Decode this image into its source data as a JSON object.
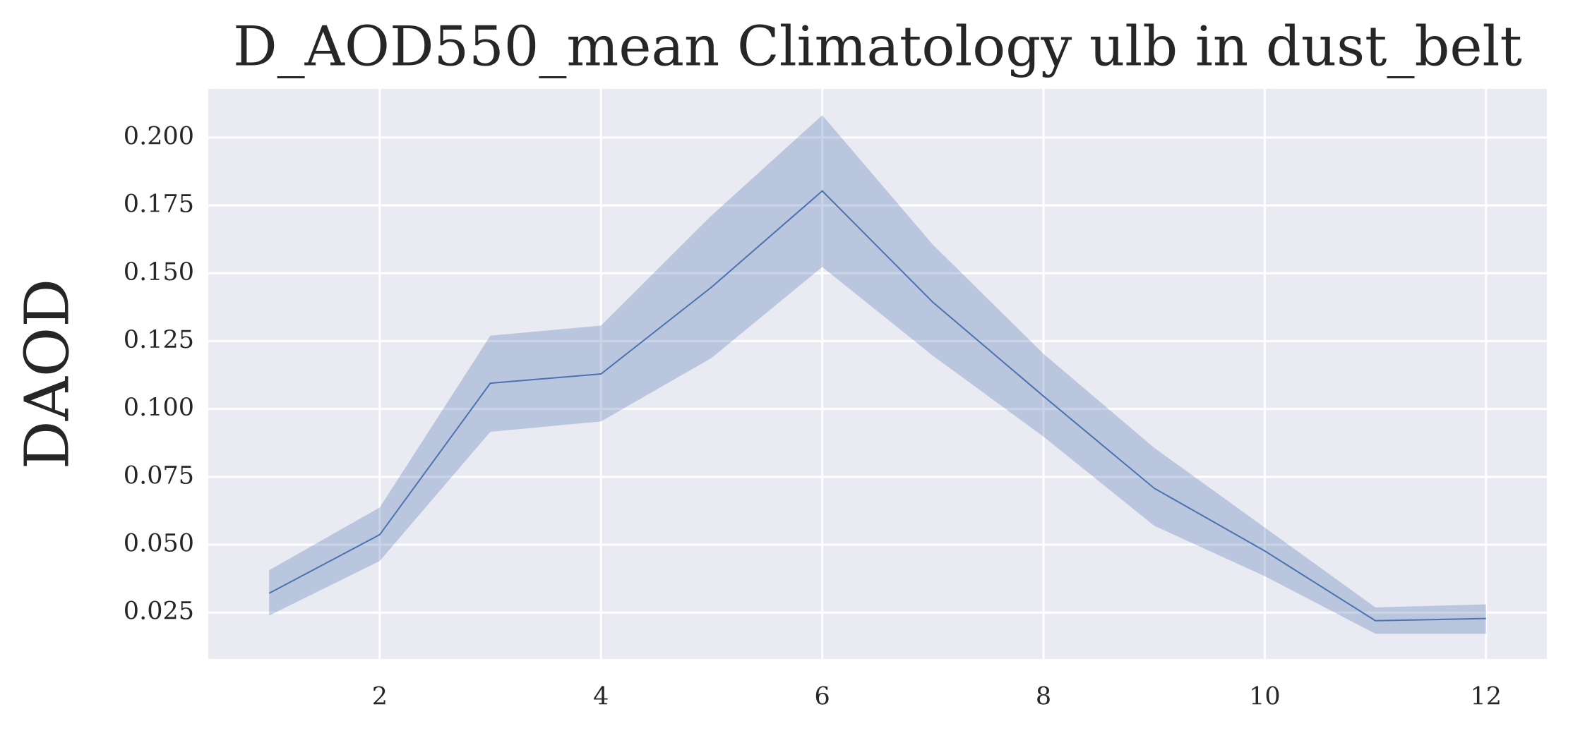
{
  "chart_data": {
    "type": "line",
    "title": "D_AOD550_mean Climatology ulb in dust_belt",
    "y_label": "DAOD",
    "x": [
      1,
      2,
      3,
      4,
      5,
      6,
      7,
      8,
      9,
      10,
      11,
      12
    ],
    "values": [
      0.0321,
      0.0537,
      0.1095,
      0.1129,
      0.1449,
      0.1803,
      0.1393,
      0.1047,
      0.0708,
      0.0477,
      0.022,
      0.0228
    ],
    "band_upper": [
      0.0406,
      0.0637,
      0.127,
      0.1307,
      0.1713,
      0.2082,
      0.1605,
      0.1203,
      0.0857,
      0.0563,
      0.0269,
      0.028
    ],
    "band_lower": [
      0.0239,
      0.044,
      0.0916,
      0.0954,
      0.1188,
      0.1523,
      0.1196,
      0.0898,
      0.057,
      0.0384,
      0.0172,
      0.0172
    ],
    "color": "#4c72b0",
    "band_color": "#4c72b0",
    "band_opacity": 0.3,
    "xlim": [
      0.45,
      12.55
    ],
    "xticks": [
      2,
      4,
      6,
      8,
      10,
      12
    ],
    "ylim": [
      0.0079,
      0.2179
    ],
    "yticks": [
      0.025,
      {
        "value": 0.05,
        "label": "0.050"
      },
      0.075,
      {
        "value": 0.1,
        "label": "0.100"
      },
      0.125,
      {
        "value": 0.15,
        "label": "0.150"
      },
      0.175,
      {
        "value": 0.2,
        "label": "0.200"
      }
    ],
    "grid": true
  }
}
